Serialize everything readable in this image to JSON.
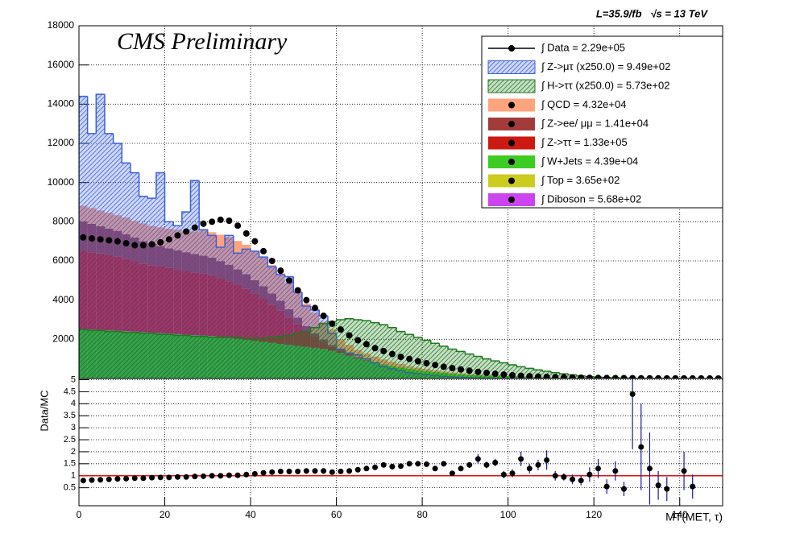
{
  "chart_data": [
    {
      "type": "histogram",
      "title": "CMS Preliminary",
      "subtitle": "L=35.9/fb   √s = 13 TeV",
      "legend": "top-right",
      "grid": true,
      "xlim": [
        0,
        150
      ],
      "ylim": [
        0,
        18000
      ],
      "yticks": [
        2000,
        4000,
        6000,
        8000,
        10000,
        12000,
        14000,
        16000,
        18000
      ],
      "bins": [
        0,
        2,
        4,
        6,
        8,
        10,
        12,
        14,
        16,
        18,
        20,
        22,
        24,
        26,
        28,
        30,
        32,
        34,
        36,
        38,
        40,
        42,
        44,
        46,
        48,
        50,
        52,
        54,
        56,
        58,
        60,
        62,
        64,
        66,
        68,
        70,
        72,
        74,
        76,
        78,
        80,
        82,
        84,
        86,
        88,
        90,
        92,
        94,
        96,
        98,
        100,
        102,
        104,
        106,
        108,
        110,
        112,
        114,
        116,
        118,
        120,
        122,
        124,
        126,
        128,
        130,
        132,
        134,
        136,
        138,
        140,
        142,
        144,
        146,
        148,
        150
      ],
      "series": [
        {
          "name": "∫ Data = 2.29e+05",
          "style": "points",
          "color": "#000000",
          "values": [
            7200,
            7150,
            7100,
            7050,
            7000,
            6900,
            6800,
            6800,
            6850,
            6950,
            7100,
            7300,
            7500,
            7700,
            7900,
            8000,
            8100,
            8050,
            7800,
            7400,
            7000,
            6500,
            6000,
            5500,
            5000,
            4500,
            4000,
            3600,
            3200,
            2800,
            2500,
            2200,
            1950,
            1750,
            1550,
            1400,
            1250,
            1100,
            1000,
            880,
            780,
            690,
            600,
            530,
            460,
            400,
            340,
            290,
            240,
            200,
            170,
            140,
            120,
            100,
            85,
            72,
            60,
            50,
            42,
            35,
            30,
            25,
            21,
            18,
            15,
            12,
            10,
            8,
            7,
            6,
            5,
            4,
            3,
            3,
            2
          ]
        },
        {
          "name": "∫ Z->μτ (x250.0) = 9.49e+02",
          "style": "overlay",
          "color": "#3a5fe0",
          "values": [
            14400,
            12500,
            14500,
            12500,
            12000,
            11000,
            10500,
            9300,
            9200,
            10500,
            8000,
            7800,
            8500,
            10100,
            7600,
            7300,
            6700,
            7300,
            6400,
            6600,
            6500,
            6200,
            5700,
            5300,
            5200,
            4400,
            3700,
            3500,
            3200,
            2300,
            1500,
            1300,
            1200,
            1000,
            800,
            600,
            500,
            400,
            300,
            250,
            200,
            150,
            110,
            80,
            60,
            40,
            30,
            20,
            15,
            10,
            8,
            6,
            5,
            4,
            3,
            3,
            2,
            2,
            1,
            1,
            1,
            1,
            1,
            0,
            0,
            0,
            0,
            0,
            0,
            0,
            0,
            0,
            0,
            0,
            0
          ]
        },
        {
          "name": "∫ H->ττ (x250.0) = 5.73e+02",
          "style": "overlay",
          "color": "#1e7a1e",
          "values": [
            2500,
            2450,
            2450,
            2400,
            2400,
            2350,
            2350,
            2300,
            2300,
            2250,
            2250,
            2200,
            2200,
            2150,
            2150,
            2100,
            2100,
            2100,
            2100,
            2050,
            2050,
            2050,
            2100,
            2150,
            2200,
            2300,
            2400,
            2600,
            2800,
            2900,
            3000,
            3050,
            3000,
            2950,
            2850,
            2750,
            2600,
            2400,
            2250,
            2100,
            1950,
            1800,
            1650,
            1500,
            1380,
            1250,
            1130,
            1000,
            900,
            800,
            700,
            600,
            520,
            440,
            370,
            300,
            240,
            190,
            140,
            100,
            70,
            50,
            35,
            25,
            20,
            15,
            10,
            8,
            6,
            5,
            4,
            3,
            2,
            1,
            1
          ]
        },
        {
          "name": "∫ QCD = 4.32e+04",
          "style": "stack",
          "color": "#ffa47c",
          "values": [
            800,
            800,
            800,
            800,
            800,
            850,
            850,
            900,
            900,
            950,
            1000,
            1050,
            1100,
            1150,
            1300,
            1300,
            1350,
            1400,
            1450,
            1500,
            1500,
            1500,
            1450,
            1400,
            1350,
            1250,
            1150,
            1050,
            900,
            800,
            500,
            430,
            370,
            320,
            280,
            240,
            200,
            170,
            140,
            120,
            100,
            85,
            70,
            60,
            50,
            42,
            35,
            30,
            25,
            20,
            17,
            14,
            12,
            10,
            8,
            3,
            3,
            2,
            2,
            2,
            1,
            1,
            1,
            1,
            1,
            1,
            1,
            1,
            0,
            0,
            0,
            0,
            0,
            0,
            0
          ]
        },
        {
          "name": "∫ Z->ee/ μμ = 1.41e+04",
          "style": "stack",
          "color": "#a33b3b",
          "values": [
            1500,
            1450,
            1400,
            1350,
            1300,
            1250,
            1200,
            1150,
            1100,
            1050,
            1000,
            980,
            960,
            940,
            920,
            900,
            870,
            840,
            800,
            760,
            700,
            640,
            570,
            500,
            420,
            340,
            260,
            190,
            130,
            90,
            60,
            40,
            25,
            15,
            10,
            8,
            6,
            5,
            4,
            3,
            2,
            2,
            1,
            1,
            1,
            0,
            0,
            0,
            0,
            0,
            0,
            0,
            0,
            0,
            0,
            0,
            0,
            0,
            0,
            0,
            0,
            0,
            0,
            0,
            0,
            0,
            0,
            0,
            0,
            0,
            0,
            0,
            0,
            0,
            0
          ]
        },
        {
          "name": "∫ Z->ττ = 1.33e+05",
          "style": "stack",
          "color": "#cc1a12",
          "values": [
            4000,
            3950,
            3900,
            3850,
            3800,
            3700,
            3600,
            3500,
            3450,
            3400,
            3350,
            3300,
            3250,
            3200,
            3150,
            3100,
            3000,
            2900,
            2750,
            2600,
            2400,
            2200,
            1950,
            1700,
            1400,
            1100,
            800,
            550,
            350,
            200,
            120,
            80,
            50,
            30,
            20,
            15,
            10,
            8,
            6,
            5,
            4,
            3,
            2,
            2,
            1,
            0,
            0,
            0,
            0,
            0,
            0,
            0,
            0,
            0,
            0,
            0,
            0,
            0,
            0,
            0,
            0,
            0,
            0,
            0,
            0,
            0,
            0,
            0,
            0,
            0,
            0,
            0,
            0,
            0,
            0
          ]
        },
        {
          "name": "∫ W+Jets = 4.39e+04",
          "style": "stack",
          "color": "#3ccc22",
          "values": [
            2500,
            2480,
            2460,
            2440,
            2420,
            2400,
            2380,
            2350,
            2320,
            2300,
            2280,
            2250,
            2220,
            2200,
            2180,
            2150,
            2100,
            2050,
            2000,
            1950,
            1900,
            1850,
            1800,
            1750,
            1700,
            1650,
            1600,
            1550,
            1500,
            1400,
            1300,
            1150,
            1000,
            900,
            800,
            700,
            620,
            550,
            480,
            420,
            370,
            320,
            280,
            240,
            210,
            185,
            165,
            150,
            135,
            120,
            105,
            90,
            80,
            70,
            62,
            55,
            48,
            42,
            37,
            32,
            28,
            25,
            22,
            19,
            17,
            15,
            13,
            11,
            10,
            9,
            8,
            7,
            6,
            5,
            4
          ]
        },
        {
          "name": "∫ Top = 3.65e+02",
          "style": "stack",
          "color": "#cccc1e",
          "values": [
            5,
            5,
            5,
            5,
            5,
            5,
            5,
            5,
            5,
            5,
            5,
            5,
            5,
            5,
            5,
            6,
            6,
            6,
            6,
            6,
            6,
            6,
            6,
            6,
            6,
            6,
            6,
            6,
            6,
            6,
            5,
            5,
            5,
            4,
            4,
            4,
            3,
            3,
            3,
            2,
            2,
            2,
            2,
            1,
            1,
            1,
            1,
            1,
            1,
            1,
            0,
            0,
            0,
            0,
            0,
            0,
            0,
            0,
            0,
            0,
            0,
            0,
            0,
            0,
            0,
            0,
            0,
            0,
            0,
            0,
            0,
            0,
            0,
            0,
            0
          ]
        },
        {
          "name": "∫ Diboson = 5.68e+02",
          "style": "stack",
          "color": "#cc44f0",
          "values": [
            10,
            10,
            10,
            10,
            10,
            10,
            10,
            10,
            10,
            10,
            10,
            10,
            10,
            10,
            10,
            12,
            12,
            12,
            12,
            12,
            11,
            11,
            11,
            10,
            10,
            10,
            9,
            9,
            9,
            8,
            8,
            7,
            7,
            6,
            6,
            5,
            5,
            4,
            4,
            4,
            3,
            3,
            3,
            2,
            2,
            2,
            2,
            2,
            1,
            1,
            1,
            1,
            1,
            1,
            1,
            0,
            0,
            0,
            0,
            0,
            0,
            0,
            0,
            0,
            0,
            0,
            0,
            0,
            0,
            0,
            0,
            0,
            0,
            0,
            0
          ]
        }
      ]
    },
    {
      "type": "errorbar",
      "xlabel": "MT(MET, τ)",
      "ylabel": "Data/MC",
      "grid": true,
      "color": "#000000",
      "error_color": "#1a1aa0",
      "reference_line": 1,
      "reference_color": "#e01010",
      "xlim": [
        0,
        150
      ],
      "xticks": [
        0,
        20,
        40,
        60,
        80,
        100,
        120,
        140
      ],
      "ylim": [
        -0.25,
        5.05
      ],
      "yticks": [
        0.5,
        1,
        1.5,
        2,
        2.5,
        3,
        3.5,
        4,
        4.5,
        5
      ],
      "values": [
        0.8,
        0.82,
        0.83,
        0.85,
        0.87,
        0.88,
        0.9,
        0.9,
        0.92,
        0.93,
        0.93,
        0.95,
        0.95,
        0.97,
        0.98,
        1.0,
        1.0,
        1.02,
        1.02,
        1.05,
        1.08,
        1.12,
        1.15,
        1.18,
        1.18,
        1.18,
        1.2,
        1.2,
        1.2,
        1.15,
        1.18,
        1.2,
        1.25,
        1.3,
        1.35,
        1.45,
        1.38,
        1.4,
        1.5,
        1.5,
        1.48,
        1.3,
        1.5,
        1.1,
        1.3,
        1.45,
        1.7,
        1.45,
        1.55,
        1.05,
        1.1,
        1.7,
        1.3,
        1.45,
        1.65,
        1.0,
        0.95,
        0.85,
        0.8,
        1.05,
        1.3,
        0.55,
        1.2,
        0.45,
        4.4,
        2.2,
        1.3,
        0.6,
        0.45,
        null,
        1.2,
        0.55,
        null,
        null,
        null
      ],
      "errors": [
        0.01,
        0.01,
        0.01,
        0.01,
        0.01,
        0.01,
        0.01,
        0.01,
        0.01,
        0.01,
        0.01,
        0.01,
        0.01,
        0.01,
        0.01,
        0.02,
        0.02,
        0.02,
        0.02,
        0.02,
        0.02,
        0.02,
        0.02,
        0.02,
        0.02,
        0.02,
        0.02,
        0.02,
        0.02,
        0.02,
        0.03,
        0.03,
        0.04,
        0.04,
        0.05,
        0.05,
        0.06,
        0.06,
        0.07,
        0.08,
        0.08,
        0.09,
        0.1,
        0.1,
        0.11,
        0.12,
        0.2,
        0.14,
        0.15,
        0.15,
        0.17,
        0.3,
        0.2,
        0.22,
        0.4,
        0.2,
        0.15,
        0.2,
        0.2,
        0.3,
        0.4,
        0.3,
        0.4,
        0.3,
        2.3,
        1.8,
        1.5,
        0.6,
        0.5,
        null,
        0.8,
        0.5,
        null,
        null,
        null
      ]
    }
  ]
}
